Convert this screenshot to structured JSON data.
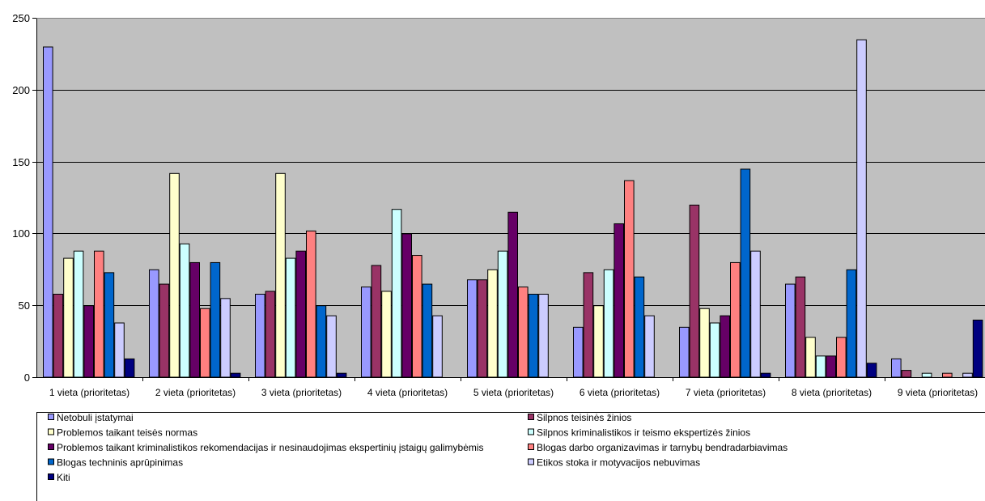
{
  "chart_data": {
    "type": "bar",
    "title": "",
    "xlabel": "",
    "ylabel": "",
    "ylim": [
      0,
      250
    ],
    "yticks": [
      0,
      50,
      100,
      150,
      200,
      250
    ],
    "grid": true,
    "plot_background": "#c0c0c0",
    "legend_position": "bottom",
    "categories": [
      "1 vieta (prioritetas)",
      "2 vieta (prioritetas)",
      "3 vieta (prioritetas)",
      "4 vieta (prioritetas)",
      "5 vieta (prioritetas)",
      "6 vieta (prioritetas)",
      "7 vieta (prioritetas)",
      "8 vieta (prioritetas)",
      "9 vieta (prioritetas)"
    ],
    "series": [
      {
        "name": "Netobuli įstatymai",
        "color": "#9999ff",
        "values": [
          230,
          75,
          58,
          63,
          68,
          35,
          35,
          65,
          13
        ]
      },
      {
        "name": "Silpnos teisinės žinios",
        "color": "#993366",
        "values": [
          58,
          65,
          60,
          78,
          68,
          73,
          120,
          70,
          5
        ]
      },
      {
        "name": "Problemos taikant teisės normas",
        "color": "#ffffcc",
        "values": [
          83,
          142,
          142,
          60,
          75,
          50,
          48,
          28,
          0
        ]
      },
      {
        "name": "Silpnos kriminalistikos ir teismo ekspertizės žinios",
        "color": "#ccffff",
        "values": [
          88,
          93,
          83,
          117,
          88,
          75,
          38,
          15,
          3
        ]
      },
      {
        "name": "Problemos taikant kriminalistikos rekomendacijas ir nesinaudojimas ekspertinių įstaigų galimybėmis",
        "color": "#660066",
        "values": [
          50,
          80,
          88,
          100,
          115,
          107,
          43,
          15,
          0
        ]
      },
      {
        "name": "Blogas darbo organizavimas ir tarnybų bendradarbiavimas",
        "color": "#ff8080",
        "values": [
          88,
          48,
          102,
          85,
          63,
          137,
          80,
          28,
          3
        ]
      },
      {
        "name": "Blogas techninis aprūpinimas",
        "color": "#0066cc",
        "values": [
          73,
          80,
          50,
          65,
          58,
          70,
          145,
          75,
          0
        ]
      },
      {
        "name": "Etikos stoka ir motyvacijos nebuvimas",
        "color": "#ccccff",
        "values": [
          38,
          55,
          43,
          43,
          58,
          43,
          88,
          235,
          3
        ]
      },
      {
        "name": "Kiti",
        "color": "#000080",
        "values": [
          13,
          3,
          3,
          0,
          0,
          0,
          3,
          10,
          40
        ]
      }
    ]
  }
}
